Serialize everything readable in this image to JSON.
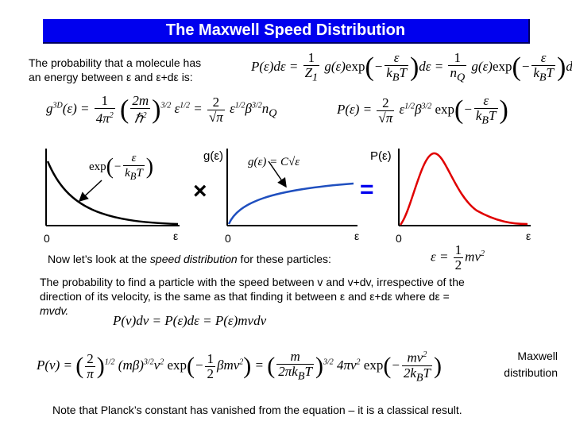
{
  "title": "The Maxwell Speed Distribution",
  "intro": {
    "line1": "The probability that a molecule has",
    "line2": "an energy between ε and ε+dε is:"
  },
  "graphs": {
    "g_label": "g(ε)",
    "p_label": "P(ε)",
    "times_sign": "×",
    "equals_sign": "=",
    "origin": "0",
    "axis_label": "ε"
  },
  "speed_intro": {
    "prefix": "Now let’s look at the ",
    "emph": "speed distribution",
    "suffix": " for these particles:"
  },
  "paragraph": {
    "line1": "The probability to find a particle with the speed between v and v+dv, irrespective of the",
    "line2": "direction of its velocity, is the same as that finding it between ε and ε+dε where dε =",
    "line3": "mvdv."
  },
  "maxwell_label": {
    "line1": "Maxwell",
    "line2": "distribution"
  },
  "note": "Note that Planck’s constant has vanished from the equation – it is a classical result.",
  "colors": {
    "title_bg": "#0000ee",
    "exp_curve": "#000000",
    "g_curve": "#1f4fbf",
    "p_curve": "#e00000"
  }
}
